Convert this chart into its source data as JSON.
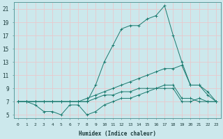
{
  "xlabel": "Humidex (Indice chaleur)",
  "x_ticks": [
    0,
    1,
    2,
    3,
    4,
    5,
    6,
    7,
    8,
    9,
    10,
    11,
    12,
    13,
    14,
    15,
    16,
    17,
    18,
    19,
    20,
    21,
    22,
    23
  ],
  "x_tick_labels": [
    "0",
    "1",
    "2",
    "3",
    "4",
    "5",
    "6",
    "7",
    "8",
    "9",
    "10",
    "11",
    "12",
    "13",
    "14",
    "15",
    "16",
    "17",
    "18",
    "19",
    "20",
    "21",
    "22",
    "23"
  ],
  "ylim": [
    4.5,
    22.0
  ],
  "xlim": [
    -0.5,
    23.5
  ],
  "y_ticks": [
    5,
    7,
    9,
    11,
    13,
    15,
    17,
    19,
    21
  ],
  "background_color": "#cce8ec",
  "grid_color": "#e8c8cc",
  "line_color": "#1a7a6e",
  "series": {
    "max_line": {
      "x": [
        0,
        1,
        2,
        3,
        4,
        5,
        6,
        7,
        8,
        9,
        10,
        11,
        12,
        13,
        14,
        15,
        16,
        17,
        18,
        19,
        20,
        21,
        22,
        23
      ],
      "y": [
        7.0,
        7.0,
        7.0,
        7.0,
        7.0,
        7.0,
        7.0,
        7.0,
        7.0,
        9.5,
        13.0,
        15.5,
        18.0,
        18.5,
        18.5,
        19.5,
        20.0,
        21.5,
        17.0,
        13.0,
        9.5,
        9.5,
        8.5,
        7.0
      ]
    },
    "avg_line": {
      "x": [
        0,
        1,
        2,
        3,
        4,
        5,
        6,
        7,
        8,
        9,
        10,
        11,
        12,
        13,
        14,
        15,
        16,
        17,
        18,
        19,
        20,
        21,
        22,
        23
      ],
      "y": [
        7.0,
        7.0,
        7.0,
        7.0,
        7.0,
        7.0,
        7.0,
        7.0,
        7.5,
        8.0,
        8.5,
        9.0,
        9.5,
        10.0,
        10.5,
        11.0,
        11.5,
        12.0,
        12.0,
        12.5,
        9.5,
        9.5,
        8.0,
        7.0
      ]
    },
    "min_line": {
      "x": [
        0,
        1,
        2,
        3,
        4,
        5,
        6,
        7,
        8,
        9,
        10,
        11,
        12,
        13,
        14,
        15,
        16,
        17,
        18,
        19,
        20,
        21,
        22,
        23
      ],
      "y": [
        7.0,
        7.0,
        6.5,
        5.5,
        5.5,
        5.0,
        6.5,
        6.5,
        5.0,
        5.5,
        6.5,
        7.0,
        7.5,
        7.5,
        8.0,
        8.5,
        9.0,
        9.0,
        9.0,
        7.0,
        7.0,
        7.5,
        7.0,
        7.0
      ]
    },
    "bottom_line": {
      "x": [
        0,
        1,
        2,
        3,
        4,
        5,
        6,
        7,
        8,
        9,
        10,
        11,
        12,
        13,
        14,
        15,
        16,
        17,
        18,
        19,
        20,
        21,
        22,
        23
      ],
      "y": [
        7.0,
        7.0,
        7.0,
        7.0,
        7.0,
        7.0,
        7.0,
        7.0,
        7.0,
        7.5,
        8.0,
        8.0,
        8.5,
        8.5,
        9.0,
        9.0,
        9.0,
        9.5,
        9.5,
        7.5,
        7.5,
        7.0,
        7.0,
        7.0
      ]
    }
  }
}
